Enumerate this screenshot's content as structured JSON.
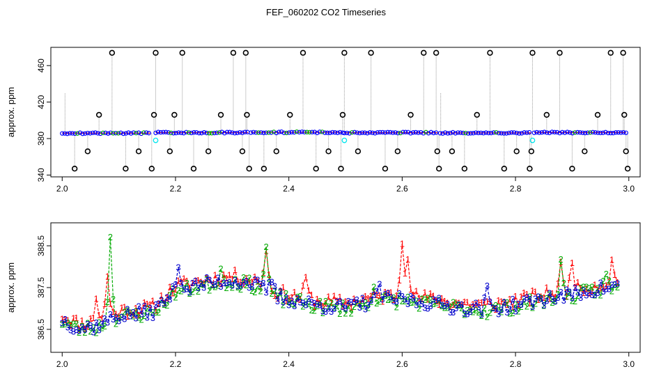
{
  "title": "FEF_060202  CO2 Timeseries",
  "chart_data": [
    {
      "type": "scatter",
      "ylabel": "approx. ppm",
      "xlim": [
        1.98,
        3.02
      ],
      "ylim": [
        338,
        480
      ],
      "x_ticks": [
        2.0,
        2.2,
        2.4,
        2.6,
        2.8,
        3.0
      ],
      "x_tick_labels": [
        "2.0",
        "2.2",
        "2.4",
        "2.6",
        "2.8",
        "3.0"
      ],
      "y_ticks": [
        340,
        380,
        420,
        460
      ],
      "y_tick_labels": [
        "340",
        "380",
        "420",
        "460"
      ],
      "baseline_segments": [
        {
          "x": [
            2.0,
            2.155
          ],
          "y": 385.9
        },
        {
          "x": [
            2.165,
            2.328
          ],
          "y": 386.5
        },
        {
          "x": [
            2.333,
            2.495
          ],
          "y": 386.8
        },
        {
          "x": [
            2.498,
            2.662
          ],
          "y": 386.4
        },
        {
          "x": [
            2.667,
            2.828
          ],
          "y": 386.2
        },
        {
          "x": [
            2.833,
            2.995
          ],
          "y": 386.6
        }
      ],
      "spikes": [
        {
          "x": 2.005,
          "y": 430,
          "marked": false
        },
        {
          "x": 2.022,
          "y": 347,
          "marked": true
        },
        {
          "x": 2.045,
          "y": 366,
          "marked": true
        },
        {
          "x": 2.065,
          "y": 406,
          "marked": true
        },
        {
          "x": 2.088,
          "y": 474,
          "marked": true
        },
        {
          "x": 2.112,
          "y": 347,
          "marked": true
        },
        {
          "x": 2.135,
          "y": 366,
          "marked": true
        },
        {
          "x": 2.158,
          "y": 347,
          "marked": true
        },
        {
          "x": 2.162,
          "y": 406,
          "marked": true
        },
        {
          "x": 2.165,
          "y": 474,
          "marked": true
        },
        {
          "x": 2.19,
          "y": 366,
          "marked": true
        },
        {
          "x": 2.198,
          "y": 406,
          "marked": true
        },
        {
          "x": 2.212,
          "y": 474,
          "marked": true
        },
        {
          "x": 2.232,
          "y": 347,
          "marked": true
        },
        {
          "x": 2.258,
          "y": 366,
          "marked": true
        },
        {
          "x": 2.28,
          "y": 406,
          "marked": true
        },
        {
          "x": 2.302,
          "y": 474,
          "marked": true
        },
        {
          "x": 2.318,
          "y": 366,
          "marked": true
        },
        {
          "x": 2.324,
          "y": 474,
          "marked": true
        },
        {
          "x": 2.326,
          "y": 406,
          "marked": true
        },
        {
          "x": 2.33,
          "y": 347,
          "marked": true
        },
        {
          "x": 2.356,
          "y": 347,
          "marked": true
        },
        {
          "x": 2.378,
          "y": 366,
          "marked": true
        },
        {
          "x": 2.402,
          "y": 406,
          "marked": true
        },
        {
          "x": 2.425,
          "y": 474,
          "marked": true
        },
        {
          "x": 2.448,
          "y": 347,
          "marked": true
        },
        {
          "x": 2.47,
          "y": 366,
          "marked": true
        },
        {
          "x": 2.492,
          "y": 347,
          "marked": true
        },
        {
          "x": 2.495,
          "y": 406,
          "marked": true
        },
        {
          "x": 2.498,
          "y": 474,
          "marked": true
        },
        {
          "x": 2.522,
          "y": 366,
          "marked": true
        },
        {
          "x": 2.545,
          "y": 474,
          "marked": true
        },
        {
          "x": 2.57,
          "y": 347,
          "marked": true
        },
        {
          "x": 2.592,
          "y": 366,
          "marked": true
        },
        {
          "x": 2.615,
          "y": 406,
          "marked": true
        },
        {
          "x": 2.638,
          "y": 474,
          "marked": true
        },
        {
          "x": 2.66,
          "y": 474,
          "marked": true
        },
        {
          "x": 2.662,
          "y": 366,
          "marked": true
        },
        {
          "x": 2.665,
          "y": 347,
          "marked": true
        },
        {
          "x": 2.668,
          "y": 430,
          "marked": false
        },
        {
          "x": 2.688,
          "y": 366,
          "marked": true
        },
        {
          "x": 2.71,
          "y": 347,
          "marked": true
        },
        {
          "x": 2.732,
          "y": 406,
          "marked": true
        },
        {
          "x": 2.755,
          "y": 474,
          "marked": true
        },
        {
          "x": 2.78,
          "y": 347,
          "marked": true
        },
        {
          "x": 2.802,
          "y": 366,
          "marked": true
        },
        {
          "x": 2.825,
          "y": 347,
          "marked": true
        },
        {
          "x": 2.828,
          "y": 366,
          "marked": true
        },
        {
          "x": 2.83,
          "y": 474,
          "marked": true
        },
        {
          "x": 2.855,
          "y": 406,
          "marked": true
        },
        {
          "x": 2.878,
          "y": 474,
          "marked": true
        },
        {
          "x": 2.9,
          "y": 347,
          "marked": true
        },
        {
          "x": 2.922,
          "y": 366,
          "marked": true
        },
        {
          "x": 2.945,
          "y": 406,
          "marked": true
        },
        {
          "x": 2.968,
          "y": 474,
          "marked": true
        },
        {
          "x": 2.99,
          "y": 474,
          "marked": true
        },
        {
          "x": 2.992,
          "y": 406,
          "marked": true
        },
        {
          "x": 2.995,
          "y": 366,
          "marked": true
        },
        {
          "x": 2.998,
          "y": 347,
          "marked": true
        }
      ],
      "cyan_points": [
        {
          "x": 2.165,
          "y": 378
        },
        {
          "x": 2.498,
          "y": 378
        },
        {
          "x": 2.83,
          "y": 378
        }
      ],
      "colors": {
        "spike": "#000000",
        "needle": "#9a9a9a",
        "series_a": "#0000ff",
        "series_b": "#00aa00",
        "series_c": "#ff0000",
        "flag": "#00e5ee",
        "gridframe": "#000000"
      }
    },
    {
      "type": "line",
      "ylabel": "approx. ppm",
      "xlim": [
        1.98,
        3.02
      ],
      "ylim": [
        385.95,
        389.05
      ],
      "x_ticks": [
        2.0,
        2.2,
        2.4,
        2.6,
        2.8,
        3.0
      ],
      "x_tick_labels": [
        "2.0",
        "2.2",
        "2.4",
        "2.6",
        "2.8",
        "3.0"
      ],
      "y_ticks": [
        386.5,
        387.5,
        388.5
      ],
      "y_tick_labels": [
        "386.5",
        "387.5",
        "388.5"
      ],
      "x_range": [
        2.0,
        2.98
      ],
      "step": 0.005,
      "trend_knots": [
        {
          "x": 2.0,
          "y": 386.75
        },
        {
          "x": 2.03,
          "y": 386.55
        },
        {
          "x": 2.06,
          "y": 386.6
        },
        {
          "x": 2.1,
          "y": 386.85
        },
        {
          "x": 2.16,
          "y": 386.95
        },
        {
          "x": 2.2,
          "y": 387.45
        },
        {
          "x": 2.25,
          "y": 387.6
        },
        {
          "x": 2.3,
          "y": 387.7
        },
        {
          "x": 2.34,
          "y": 387.6
        },
        {
          "x": 2.38,
          "y": 387.3
        },
        {
          "x": 2.45,
          "y": 387.1
        },
        {
          "x": 2.5,
          "y": 387.05
        },
        {
          "x": 2.55,
          "y": 387.2
        },
        {
          "x": 2.6,
          "y": 387.25
        },
        {
          "x": 2.65,
          "y": 387.15
        },
        {
          "x": 2.7,
          "y": 387.05
        },
        {
          "x": 2.75,
          "y": 387.0
        },
        {
          "x": 2.8,
          "y": 387.1
        },
        {
          "x": 2.85,
          "y": 387.25
        },
        {
          "x": 2.9,
          "y": 387.35
        },
        {
          "x": 2.95,
          "y": 387.5
        },
        {
          "x": 2.98,
          "y": 387.55
        }
      ],
      "series": [
        {
          "marker": "1",
          "color": "#ff0000",
          "offset": 0.08,
          "seed": 11,
          "bumps": [
            {
              "x": 2.06,
              "h": 0.6
            },
            {
              "x": 2.08,
              "h": 1.0
            },
            {
              "x": 2.36,
              "h": 0.95
            },
            {
              "x": 2.43,
              "h": 0.5
            },
            {
              "x": 2.6,
              "h": 1.35
            },
            {
              "x": 2.61,
              "h": 1.0
            },
            {
              "x": 2.88,
              "h": 0.6
            },
            {
              "x": 2.9,
              "h": 0.8
            },
            {
              "x": 2.97,
              "h": 0.5
            }
          ]
        },
        {
          "marker": "2",
          "color": "#00aa00",
          "offset": -0.05,
          "seed": 23,
          "bumps": [
            {
              "x": 2.085,
              "h": 1.95
            },
            {
              "x": 2.28,
              "h": 0.3
            },
            {
              "x": 2.36,
              "h": 1.1
            },
            {
              "x": 2.55,
              "h": 0.4
            },
            {
              "x": 2.88,
              "h": 0.85
            },
            {
              "x": 2.96,
              "h": 0.35
            }
          ]
        },
        {
          "marker": "3",
          "color": "#0000cc",
          "offset": -0.02,
          "seed": 37,
          "bumps": [
            {
              "x": 2.205,
              "h": 0.7
            },
            {
              "x": 2.37,
              "h": 0.35
            },
            {
              "x": 2.56,
              "h": 0.4
            },
            {
              "x": 2.75,
              "h": 0.45
            }
          ]
        }
      ]
    }
  ]
}
